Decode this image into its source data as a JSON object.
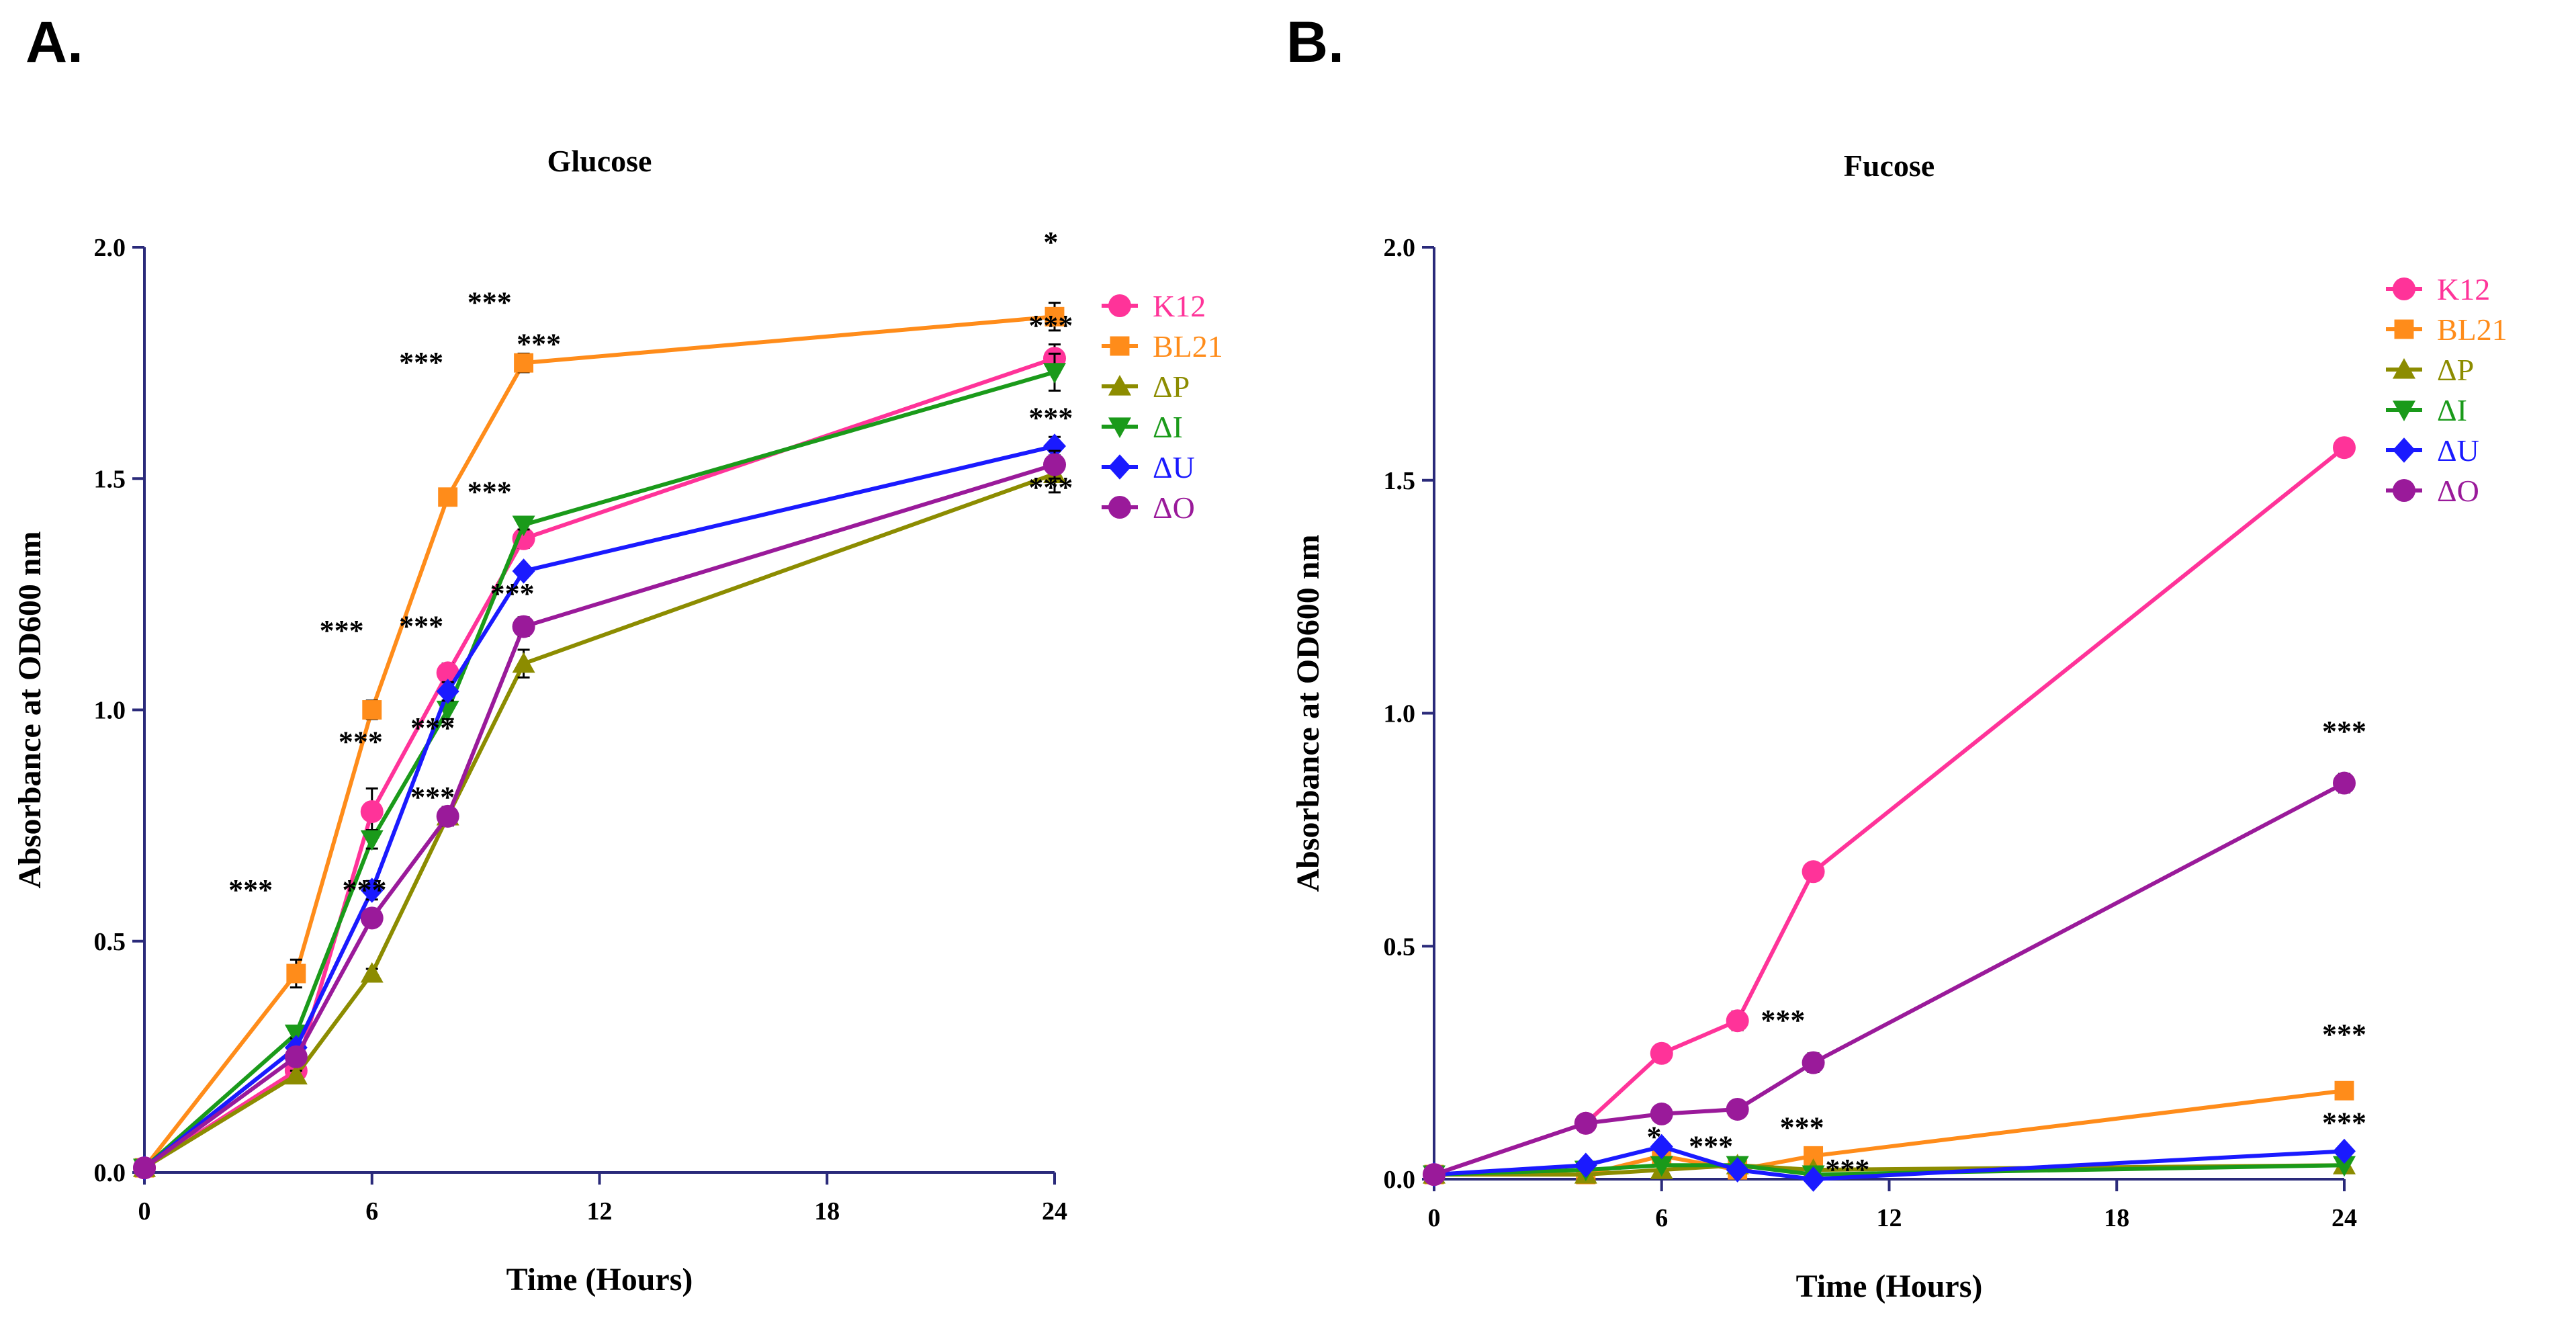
{
  "chart_data": [
    {
      "panel": "A.",
      "type": "line",
      "title": "Glucose",
      "xlabel": "Time (Hours)",
      "ylabel": "Absorbance at OD600 nm",
      "xlim": [
        0,
        24
      ],
      "ylim": [
        0,
        2.0
      ],
      "xticks": [
        0,
        6,
        12,
        18,
        24
      ],
      "xtick_labels": [
        "0",
        "6",
        "12",
        "18",
        "24"
      ],
      "yticks": [
        0,
        0.5,
        1.0,
        1.5,
        2.0
      ],
      "ytick_labels": [
        "0.0",
        "0.5",
        "1.0",
        "1.5",
        "2.0"
      ],
      "x": [
        0,
        4,
        6,
        8,
        10,
        24
      ],
      "series": [
        {
          "name": "K12",
          "color": "#ff3399",
          "marker": "circle",
          "values": [
            0.01,
            0.22,
            0.78,
            1.08,
            1.37,
            1.76
          ],
          "errors": [
            0,
            0.02,
            0.05,
            0.02,
            0.02,
            0.03
          ]
        },
        {
          "name": "BL21",
          "color": "#ff8c1a",
          "marker": "square",
          "values": [
            0.01,
            0.43,
            1.0,
            1.46,
            1.75,
            1.85
          ],
          "errors": [
            0,
            0.03,
            0.02,
            0.01,
            0.02,
            0.03
          ]
        },
        {
          "name": "ΔP",
          "color": "#8c8c00",
          "marker": "triangle-up",
          "values": [
            0.01,
            0.21,
            0.43,
            0.77,
            1.1,
            1.51
          ],
          "errors": [
            0,
            0.01,
            0.01,
            0.02,
            0.03,
            0.04
          ]
        },
        {
          "name": "ΔI",
          "color": "#1a9a1a",
          "marker": "triangle-down",
          "values": [
            0.01,
            0.3,
            0.72,
            1.0,
            1.4,
            1.73
          ],
          "errors": [
            0,
            0.01,
            0.02,
            0.02,
            0.01,
            0.04
          ]
        },
        {
          "name": "ΔU",
          "color": "#1a1aff",
          "marker": "diamond",
          "values": [
            0.01,
            0.27,
            0.61,
            1.04,
            1.3,
            1.57
          ],
          "errors": [
            0,
            0.01,
            0.02,
            0.02,
            0.01,
            0.02
          ]
        },
        {
          "name": "ΔO",
          "color": "#9a1a9a",
          "marker": "circle",
          "values": [
            0.01,
            0.25,
            0.55,
            0.77,
            1.18,
            1.53
          ],
          "errors": [
            0,
            0.01,
            0.01,
            0.02,
            0.02,
            0.03
          ]
        }
      ],
      "annotations": [
        {
          "text": "***",
          "x": 2.8,
          "y": 0.59
        },
        {
          "text": "***",
          "x": 5.2,
          "y": 1.15
        },
        {
          "text": "***",
          "x": 5.7,
          "y": 0.91
        },
        {
          "text": "***",
          "x": 5.8,
          "y": 0.59
        },
        {
          "text": "***",
          "x": 7.3,
          "y": 1.73
        },
        {
          "text": "***",
          "x": 7.3,
          "y": 1.16
        },
        {
          "text": "***",
          "x": 7.6,
          "y": 0.94
        },
        {
          "text": "***",
          "x": 7.6,
          "y": 0.79
        },
        {
          "text": "***",
          "x": 9.1,
          "y": 1.86
        },
        {
          "text": "***",
          "x": 9.1,
          "y": 1.45
        },
        {
          "text": "***",
          "x": 9.7,
          "y": 1.23
        },
        {
          "text": "***",
          "x": 10.4,
          "y": 1.77
        },
        {
          "text": "*",
          "x": 23.9,
          "y": 1.99
        },
        {
          "text": "***",
          "x": 23.9,
          "y": 1.81
        },
        {
          "text": "***",
          "x": 23.9,
          "y": 1.61
        },
        {
          "text": "***",
          "x": 23.9,
          "y": 1.46
        }
      ]
    },
    {
      "panel": "B.",
      "type": "line",
      "title": "Fucose",
      "xlabel": "Time (Hours)",
      "ylabel": "Absorbance at OD600 nm",
      "xlim": [
        0,
        24
      ],
      "ylim": [
        0,
        2.0
      ],
      "xticks": [
        0,
        6,
        12,
        18,
        24
      ],
      "xtick_labels": [
        "0",
        "6",
        "12",
        "18",
        "24"
      ],
      "yticks": [
        0,
        0.5,
        1.0,
        1.5,
        2.0
      ],
      "ytick_labels": [
        "0.0",
        "0.5",
        "1.0",
        "1.5",
        "2.0"
      ],
      "x": [
        0,
        4,
        6,
        8,
        10,
        24
      ],
      "series": [
        {
          "name": "K12",
          "color": "#ff3399",
          "marker": "circle",
          "values": [
            0.01,
            0.12,
            0.27,
            0.34,
            0.66,
            1.57
          ],
          "errors": [
            0,
            0.01,
            0.01,
            0.02,
            0.01,
            0.01
          ]
        },
        {
          "name": "BL21",
          "color": "#ff8c1a",
          "marker": "square",
          "values": [
            0.01,
            0.01,
            0.05,
            0.02,
            0.05,
            0.19
          ],
          "errors": [
            0,
            0,
            0.01,
            0.01,
            0.01,
            0.01
          ]
        },
        {
          "name": "ΔP",
          "color": "#8c8c00",
          "marker": "triangle-up",
          "values": [
            0.01,
            0.01,
            0.02,
            0.03,
            0.02,
            0.03
          ],
          "errors": [
            0,
            0,
            0,
            0,
            0,
            0
          ]
        },
        {
          "name": "ΔI",
          "color": "#1a9a1a",
          "marker": "triangle-down",
          "values": [
            0.01,
            0.02,
            0.03,
            0.03,
            0.01,
            0.03
          ],
          "errors": [
            0,
            0,
            0,
            0,
            0,
            0
          ]
        },
        {
          "name": "ΔU",
          "color": "#1a1aff",
          "marker": "diamond",
          "values": [
            0.01,
            0.03,
            0.07,
            0.02,
            0.0,
            0.06
          ],
          "errors": [
            0,
            0,
            0.01,
            0,
            0,
            0.01
          ]
        },
        {
          "name": "ΔO",
          "color": "#9a1a9a",
          "marker": "circle",
          "values": [
            0.01,
            0.12,
            0.14,
            0.15,
            0.25,
            0.85
          ],
          "errors": [
            0,
            0.01,
            0.01,
            0.01,
            0.02,
            0.02
          ]
        }
      ],
      "annotations": [
        {
          "text": "*",
          "x": 5.8,
          "y": 0.07
        },
        {
          "text": "***",
          "x": 7.3,
          "y": 0.05
        },
        {
          "text": "***",
          "x": 9.2,
          "y": 0.32
        },
        {
          "text": "***",
          "x": 9.7,
          "y": 0.09
        },
        {
          "text": "***",
          "x": 10.9,
          "y": 0.0
        },
        {
          "text": "***",
          "x": 24.0,
          "y": 0.94
        },
        {
          "text": "***",
          "x": 24.0,
          "y": 0.29
        },
        {
          "text": "***",
          "x": 24.0,
          "y": 0.1
        }
      ]
    }
  ]
}
